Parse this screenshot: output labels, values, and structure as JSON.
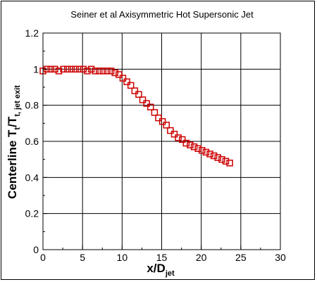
{
  "chart_data": {
    "type": "scatter",
    "title": "Seiner et al Axisymmetric Hot Supersonic Jet",
    "xlabel": {
      "main": "x/D",
      "sub": "jet"
    },
    "ylabel": {
      "main": "Centerline T",
      "sub1": "t",
      "mid": "/T",
      "sub2": "t, jet exit"
    },
    "xlim": [
      0,
      30
    ],
    "ylim": [
      0,
      1.2
    ],
    "xticks": [
      "0",
      "5",
      "10",
      "15",
      "20",
      "25",
      "30"
    ],
    "yticks": [
      "0",
      "0.2",
      "0.4",
      "0.6",
      "0.8",
      "1",
      "1.2"
    ],
    "grid": true,
    "marker": {
      "shape": "square",
      "color": "#cc0000",
      "filled": false
    },
    "series": [
      {
        "x": [
          0.0,
          0.5,
          1.0,
          1.5,
          2.0,
          2.6,
          3.1,
          3.6,
          4.1,
          4.6,
          5.1,
          5.6,
          6.1,
          6.6,
          7.1,
          7.6,
          8.1,
          8.6,
          9.1,
          9.6,
          10.1,
          10.6,
          11.1,
          11.6,
          12.1,
          12.6,
          13.1,
          13.6,
          14.1,
          14.6,
          15.1,
          15.6,
          16.1,
          16.6,
          17.1,
          17.6,
          18.1,
          18.6,
          19.1,
          19.6,
          20.1,
          20.6,
          21.1,
          21.6,
          22.1,
          22.6,
          23.1,
          23.6
        ],
        "y": [
          0.99,
          1.0,
          1.0,
          1.0,
          0.99,
          1.0,
          1.0,
          1.0,
          1.0,
          1.0,
          1.0,
          0.99,
          1.0,
          0.99,
          0.99,
          0.99,
          0.99,
          0.99,
          0.98,
          0.97,
          0.95,
          0.93,
          0.91,
          0.88,
          0.86,
          0.83,
          0.81,
          0.79,
          0.76,
          0.73,
          0.71,
          0.69,
          0.66,
          0.64,
          0.62,
          0.61,
          0.59,
          0.58,
          0.57,
          0.56,
          0.55,
          0.54,
          0.53,
          0.52,
          0.51,
          0.5,
          0.49,
          0.48
        ]
      }
    ]
  }
}
